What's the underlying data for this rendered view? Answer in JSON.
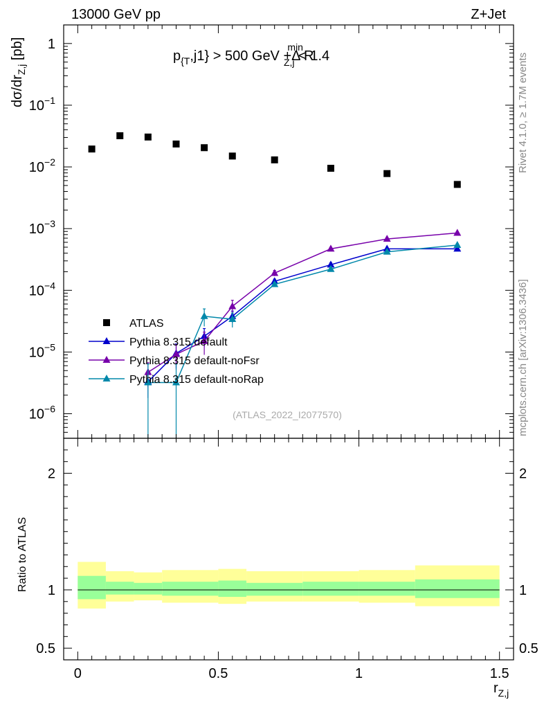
{
  "header": {
    "left": "13000 GeV pp",
    "right": "Z+Jet"
  },
  "cut_label": {
    "p": "p",
    "p_sub": "{T",
    "mid": ",j1} > 500 GeV +Δ R",
    "r_sub": "Z,j",
    "r_sup": "min",
    "end": " < 1.4"
  },
  "side_labels": {
    "rivet": "Rivet 4.1.0, ≥ 1.7M events",
    "mcplots": "mcplots.cern.ch [arXiv:1306.3436]"
  },
  "watermark": "(ATLAS_2022_I2077570)",
  "ylabel_main": {
    "prefix": "dσ/dr",
    "sub": "Z,j",
    "suffix": " [pb]"
  },
  "ylabel_ratio": "Ratio to ATLAS",
  "xlabel": {
    "main": "r",
    "sub": "Z,j"
  },
  "chart_data": [
    {
      "type": "scatter",
      "panel": "main",
      "yscale": "log",
      "xlim": [
        -0.05,
        1.55
      ],
      "ylim": [
        4e-07,
        2
      ],
      "x_ticks": [
        "0",
        "0.5",
        "1",
        "1.5"
      ],
      "y_ticks": [
        {
          "value": 1,
          "base": "1",
          "exp": ""
        },
        {
          "value": 0.1,
          "base": "10",
          "exp": "−1"
        },
        {
          "value": 0.01,
          "base": "10",
          "exp": "−2"
        },
        {
          "value": 0.001,
          "base": "10",
          "exp": "−3"
        },
        {
          "value": 0.0001,
          "base": "10",
          "exp": "−4"
        },
        {
          "value": 1e-05,
          "base": "10",
          "exp": "−5"
        },
        {
          "value": 1e-06,
          "base": "10",
          "exp": "−6"
        }
      ],
      "series": [
        {
          "name": "ATLAS",
          "color": "#000000",
          "marker": "square",
          "line": false,
          "x": [
            0.05,
            0.15,
            0.25,
            0.35,
            0.45,
            0.55,
            0.7,
            0.9,
            1.1,
            1.35
          ],
          "y": [
            0.0195,
            0.032,
            0.0305,
            0.0235,
            0.0205,
            0.015,
            0.013,
            0.0095,
            0.0078,
            0.0052
          ]
        },
        {
          "name": "Pythia 8.315 default",
          "color": "#0000cc",
          "marker": "triangle",
          "line": true,
          "x": [
            0.25,
            0.35,
            0.45,
            0.55,
            0.7,
            0.9,
            1.1,
            1.35
          ],
          "y": [
            3.3e-06,
            9.5e-06,
            1.8e-05,
            3.8e-05,
            0.00014,
            0.00026,
            0.00047,
            0.00047
          ],
          "yerr": [
            1.5e-06,
            4e-06,
            6e-06,
            8e-06,
            1.2e-05,
            2e-05,
            3e-05,
            3e-05
          ]
        },
        {
          "name": "Pythia 8.315 default-noFsr",
          "color": "#7700aa",
          "marker": "triangle",
          "line": true,
          "x": [
            0.25,
            0.35,
            0.45,
            0.55,
            0.7,
            0.9,
            1.1,
            1.35
          ],
          "y": [
            4.7e-06,
            9.2e-06,
            1.5e-05,
            5.5e-05,
            0.00019,
            0.00047,
            0.00068,
            0.00085
          ],
          "yerr": [
            2e-06,
            4e-06,
            6e-06,
            1.4e-05,
            2e-05,
            3e-05,
            4e-05,
            4e-05
          ]
        },
        {
          "name": "Pythia 8.315 default-noRap",
          "color": "#0088aa",
          "marker": "triangle",
          "line": true,
          "x": [
            0.25,
            0.35,
            0.45,
            0.55,
            0.7,
            0.9,
            1.1,
            1.35
          ],
          "y": [
            3.2e-06,
            3.2e-06,
            3.8e-05,
            3.4e-05,
            0.000125,
            0.00022,
            0.00042,
            0.00054
          ],
          "yerr": [
            3.2e-06,
            3.2e-06,
            1.2e-05,
            9e-06,
            1e-05,
            2e-05,
            3e-05,
            3e-05
          ]
        }
      ],
      "legend": {
        "placement": "lower-left",
        "entries": [
          "ATLAS",
          "Pythia 8.315 default",
          "Pythia 8.315 default-noFsr",
          "Pythia 8.315 default-noRap"
        ]
      }
    },
    {
      "type": "area",
      "panel": "ratio",
      "ylabel": "Ratio to ATLAS",
      "xlim": [
        -0.05,
        1.55
      ],
      "ylim": [
        0.4,
        2.3
      ],
      "y_ticks": [
        "0.5",
        "1",
        "2"
      ],
      "reference_line": 1,
      "bins": [
        {
          "x0": 0.0,
          "x1": 0.1,
          "inner": [
            0.92,
            1.12
          ],
          "outer": [
            0.84,
            1.24
          ]
        },
        {
          "x0": 0.1,
          "x1": 0.2,
          "inner": [
            0.96,
            1.07
          ],
          "outer": [
            0.9,
            1.16
          ]
        },
        {
          "x0": 0.2,
          "x1": 0.3,
          "inner": [
            0.96,
            1.06
          ],
          "outer": [
            0.91,
            1.15
          ]
        },
        {
          "x0": 0.3,
          "x1": 0.5,
          "inner": [
            0.95,
            1.07
          ],
          "outer": [
            0.89,
            1.17
          ]
        },
        {
          "x0": 0.5,
          "x1": 0.6,
          "inner": [
            0.94,
            1.08
          ],
          "outer": [
            0.88,
            1.18
          ]
        },
        {
          "x0": 0.6,
          "x1": 0.8,
          "inner": [
            0.95,
            1.06
          ],
          "outer": [
            0.9,
            1.16
          ]
        },
        {
          "x0": 0.8,
          "x1": 1.0,
          "inner": [
            0.95,
            1.07
          ],
          "outer": [
            0.9,
            1.16
          ]
        },
        {
          "x0": 1.0,
          "x1": 1.2,
          "inner": [
            0.95,
            1.07
          ],
          "outer": [
            0.89,
            1.17
          ]
        },
        {
          "x0": 1.2,
          "x1": 1.5,
          "inner": [
            0.93,
            1.09
          ],
          "outer": [
            0.86,
            1.21
          ]
        }
      ],
      "colors": {
        "inner": "#99ff99",
        "outer": "#ffff99"
      }
    }
  ]
}
